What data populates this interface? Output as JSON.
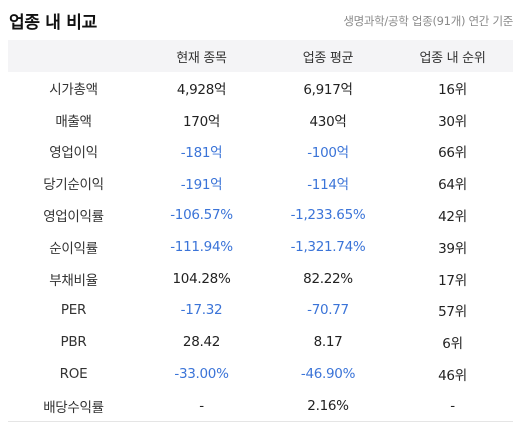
{
  "header": {
    "title": "업종 내 비교",
    "subtitle": "생명과학/공학 업종(91개) 연간 기준"
  },
  "table": {
    "columns": [
      "",
      "현재 종목",
      "업종 평균",
      "업종 내 순위"
    ],
    "rows": [
      {
        "label": "시가총액",
        "current": "4,928억",
        "avg": "6,917억",
        "rank": "16위",
        "current_neg": false,
        "avg_neg": false
      },
      {
        "label": "매출액",
        "current": "170억",
        "avg": "430억",
        "rank": "30위",
        "current_neg": false,
        "avg_neg": false
      },
      {
        "label": "영업이익",
        "current": "-181억",
        "avg": "-100억",
        "rank": "66위",
        "current_neg": true,
        "avg_neg": true
      },
      {
        "label": "당기순이익",
        "current": "-191억",
        "avg": "-114억",
        "rank": "64위",
        "current_neg": true,
        "avg_neg": true
      },
      {
        "label": "영업이익률",
        "current": "-106.57%",
        "avg": "-1,233.65%",
        "rank": "42위",
        "current_neg": true,
        "avg_neg": true
      },
      {
        "label": "순이익률",
        "current": "-111.94%",
        "avg": "-1,321.74%",
        "rank": "39위",
        "current_neg": true,
        "avg_neg": true
      },
      {
        "label": "부채비율",
        "current": "104.28%",
        "avg": "82.22%",
        "rank": "17위",
        "current_neg": false,
        "avg_neg": false
      },
      {
        "label": "PER",
        "current": "-17.32",
        "avg": "-70.77",
        "rank": "57위",
        "current_neg": true,
        "avg_neg": true
      },
      {
        "label": "PBR",
        "current": "28.42",
        "avg": "8.17",
        "rank": "6위",
        "current_neg": false,
        "avg_neg": false
      },
      {
        "label": "ROE",
        "current": "-33.00%",
        "avg": "-46.90%",
        "rank": "46위",
        "current_neg": true,
        "avg_neg": true
      },
      {
        "label": "배당수익률",
        "current": "-",
        "avg": "2.16%",
        "rank": "-",
        "current_neg": false,
        "avg_neg": false
      }
    ]
  },
  "colors": {
    "negative": "#3b74d8",
    "header_bg": "#f4f4f6"
  }
}
